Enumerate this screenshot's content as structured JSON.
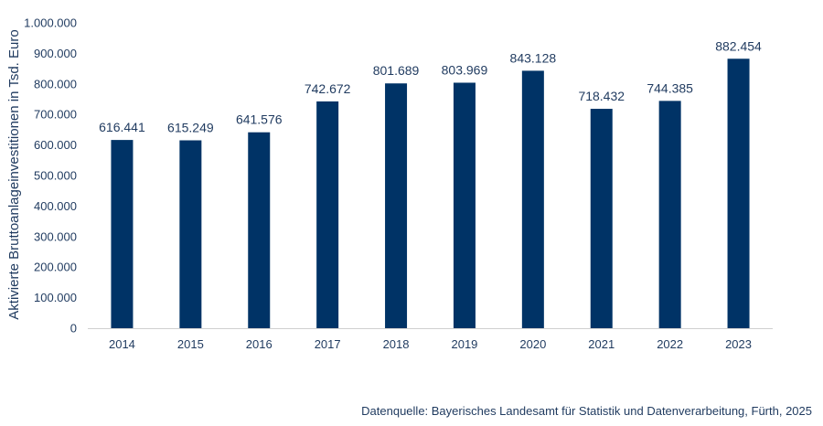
{
  "chart_data": {
    "type": "bar",
    "categories": [
      "2014",
      "2015",
      "2016",
      "2017",
      "2018",
      "2019",
      "2020",
      "2021",
      "2022",
      "2023"
    ],
    "values": [
      616441,
      615249,
      641576,
      742672,
      801689,
      803969,
      843128,
      718432,
      744385,
      882454
    ],
    "value_labels": [
      "616.441",
      "615.249",
      "641.576",
      "742.672",
      "801.689",
      "803.969",
      "843.128",
      "718.432",
      "744.385",
      "882.454"
    ],
    "ylabel": "Aktivierte Bruttoanlageinvestitionen in Tsd. Euro",
    "xlabel": "",
    "ylim": [
      0,
      1000000
    ],
    "yticks": [
      0,
      100000,
      200000,
      300000,
      400000,
      500000,
      600000,
      700000,
      800000,
      900000,
      1000000
    ],
    "ytick_labels": [
      "0",
      "100.000",
      "200.000",
      "300.000",
      "400.000",
      "500.000",
      "600.000",
      "700.000",
      "800.000",
      "900.000",
      "1.000.000"
    ],
    "grid": false,
    "bar_color": "#003366"
  },
  "source_text": "Datenquelle: Bayerisches Landesamt für Statistik und Datenverarbeitung, Fürth, 2025"
}
